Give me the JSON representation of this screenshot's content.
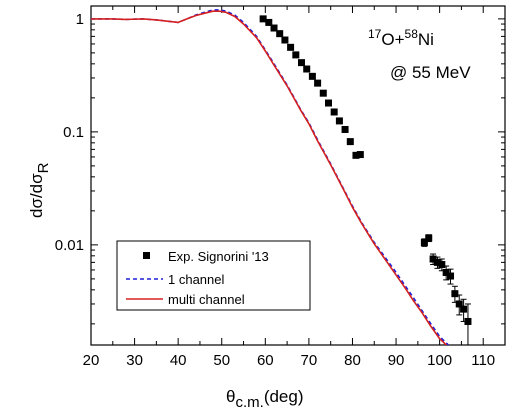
{
  "chart_data": {
    "type": "scatter",
    "title": "",
    "xlabel": {
      "main": "θ",
      "sub": "c.m.",
      "tail": "(deg)"
    },
    "ylabel": {
      "a": "dσ/dσ",
      "sub": "R"
    },
    "xlim": [
      20,
      115
    ],
    "ylim": [
      0.0013,
      1.3
    ],
    "yscale": "log",
    "grid": false,
    "legend_position": "bottom-left",
    "x_ticks": [
      20,
      30,
      40,
      50,
      60,
      70,
      80,
      90,
      100,
      110
    ],
    "x_tick_labels": [
      "20",
      "30",
      "40",
      "50",
      "60",
      "70",
      "80",
      "90",
      "100",
      "110"
    ],
    "y_ticks": [
      1,
      0.1,
      0.01
    ],
    "y_tick_labels": [
      "1",
      "0.1",
      "0.01"
    ],
    "annotation": {
      "line1": {
        "pre": "17",
        "mid": "O+",
        "sup": "58",
        "post": "Ni"
      },
      "line2": "@ 55 MeV"
    },
    "series": [
      {
        "name": "Exp. Signorini '13",
        "kind": "points",
        "color": "#000000",
        "x": [
          59.5,
          60.8,
          62.0,
          63.3,
          64.5,
          65.8,
          67.0,
          68.3,
          69.5,
          70.8,
          72.0,
          73.3,
          74.5,
          75.8,
          77.0,
          78.3,
          79.5,
          80.8,
          81.8,
          96.5,
          97.5,
          98.5,
          99.5,
          100.5,
          101.5,
          102.5,
          103.5,
          104.5,
          105.5,
          106.5
        ],
        "y": [
          1.0,
          0.93,
          0.83,
          0.74,
          0.65,
          0.56,
          0.48,
          0.41,
          0.36,
          0.31,
          0.27,
          0.22,
          0.18,
          0.15,
          0.125,
          0.105,
          0.082,
          0.062,
          0.063,
          0.0105,
          0.0115,
          0.0075,
          0.007,
          0.0067,
          0.0057,
          0.0053,
          0.0037,
          0.003,
          0.0027,
          0.0021
        ],
        "err": [
          0,
          0,
          0,
          0,
          0,
          0,
          0,
          0,
          0,
          0,
          0,
          0,
          0,
          0,
          0,
          0,
          0,
          0,
          0,
          0.0008,
          0.0008,
          0.0008,
          0.0008,
          0.0008,
          0.0008,
          0.0008,
          0.0006,
          0.0006,
          0.0006,
          0.0009
        ]
      },
      {
        "name": "1 channel",
        "kind": "dashed-line",
        "color": "#1f1fd6",
        "x": [
          20,
          25,
          28,
          32,
          35,
          38,
          40,
          42,
          44,
          46,
          48,
          49.5,
          51,
          53,
          55,
          58,
          60,
          62,
          65,
          68,
          70,
          72,
          75,
          78,
          80,
          82,
          85,
          88,
          90,
          92,
          94,
          96,
          98,
          100,
          102,
          103
        ],
        "y": [
          1.0,
          1.0,
          0.99,
          1.0,
          0.98,
          0.95,
          0.93,
          1.0,
          1.08,
          1.14,
          1.2,
          1.2,
          1.17,
          1.08,
          0.93,
          0.7,
          0.53,
          0.4,
          0.26,
          0.16,
          0.12,
          0.085,
          0.052,
          0.031,
          0.022,
          0.016,
          0.0105,
          0.0073,
          0.0057,
          0.0044,
          0.0034,
          0.0026,
          0.002,
          0.00155,
          0.0013,
          0.00118
        ]
      },
      {
        "name": "multi channel",
        "kind": "solid-line",
        "color": "#d62020",
        "x": [
          20,
          25,
          28,
          32,
          35,
          38,
          40,
          42,
          44,
          46,
          48,
          49.5,
          51,
          53,
          55,
          58,
          60,
          62,
          65,
          68,
          70,
          72,
          75,
          78,
          80,
          82,
          85,
          88,
          90,
          92,
          94,
          96,
          98,
          100,
          102,
          103
        ],
        "y": [
          1.0,
          1.0,
          0.99,
          1.0,
          0.98,
          0.95,
          0.93,
          1.0,
          1.07,
          1.12,
          1.17,
          1.17,
          1.14,
          1.05,
          0.9,
          0.68,
          0.52,
          0.39,
          0.255,
          0.158,
          0.118,
          0.083,
          0.051,
          0.0305,
          0.0215,
          0.0157,
          0.0102,
          0.007,
          0.0054,
          0.0042,
          0.0032,
          0.0025,
          0.0019,
          0.00148,
          0.00125,
          0.00113
        ]
      }
    ]
  }
}
